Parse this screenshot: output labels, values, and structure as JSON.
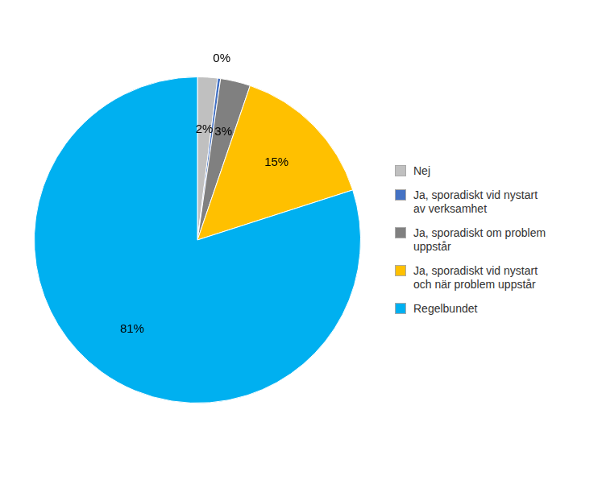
{
  "chart_data": {
    "type": "pie",
    "categories": [
      "Nej",
      "Ja, sporadiskt vid nystart\nav verksamhet",
      "Ja, sporadiskt om problem\nuppstår",
      "Ja, sporadiskt vid nystart\noch när problem uppstår",
      "Regelbundet"
    ],
    "values": [
      2,
      0.3,
      3,
      15,
      81
    ],
    "value_labels": [
      "2%",
      "0%",
      "3%",
      "15%",
      "81%"
    ],
    "colors": [
      "#c0c0c0",
      "#4472c4",
      "#808080",
      "#ffc000",
      "#00b0f0"
    ],
    "legend": "right",
    "data_labels": true
  }
}
